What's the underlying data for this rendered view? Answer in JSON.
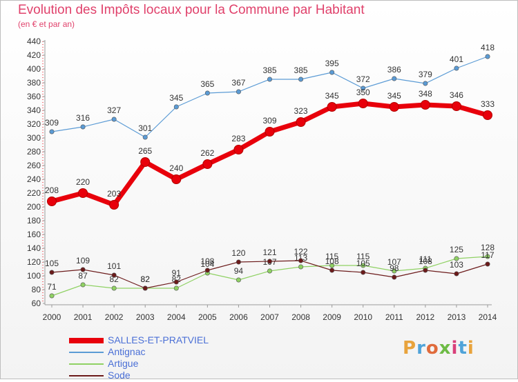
{
  "header": {
    "title": "Evolution des Impôts locaux pour la Commune par Habitant",
    "subtitle": "(en € et par an)"
  },
  "logo": {
    "text": "Proxiti",
    "colors": [
      "#e8a33c",
      "#4fa3d9",
      "#e06b3c",
      "#6dbb45",
      "#d9407a",
      "#4fa3d9",
      "#e8a33c"
    ]
  },
  "chart_data": {
    "type": "line",
    "categories": [
      "2000",
      "2001",
      "2002",
      "2003",
      "2004",
      "2005",
      "2006",
      "2007",
      "2008",
      "2009",
      "2010",
      "2011",
      "2012",
      "2013",
      "2014"
    ],
    "ylim": [
      60,
      440
    ],
    "yticks": [
      60,
      80,
      100,
      120,
      140,
      160,
      180,
      200,
      220,
      240,
      260,
      280,
      300,
      320,
      340,
      360,
      380,
      400,
      420,
      440
    ],
    "grid": false,
    "legend_position": "bottom-left",
    "series": [
      {
        "name": "SALLES-ET-PRATVIEL",
        "color": "#e8000b",
        "values": [
          208,
          220,
          203,
          265,
          240,
          262,
          283,
          309,
          323,
          345,
          350,
          345,
          348,
          346,
          333
        ]
      },
      {
        "name": "Antignac",
        "color": "#5b9bd5",
        "values": [
          309,
          316,
          327,
          301,
          345,
          365,
          367,
          385,
          385,
          395,
          372,
          386,
          379,
          401,
          418
        ]
      },
      {
        "name": "Artigue",
        "color": "#8fd163",
        "values": [
          71,
          87,
          82,
          82,
          82,
          104,
          94,
          107,
          113,
          115,
          115,
          107,
          111,
          125,
          128
        ]
      },
      {
        "name": "Sode",
        "color": "#6b1a1a",
        "values": [
          105,
          109,
          101,
          82,
          91,
          108,
          120,
          121,
          122,
          108,
          105,
          98,
          108,
          103,
          117
        ]
      }
    ]
  }
}
